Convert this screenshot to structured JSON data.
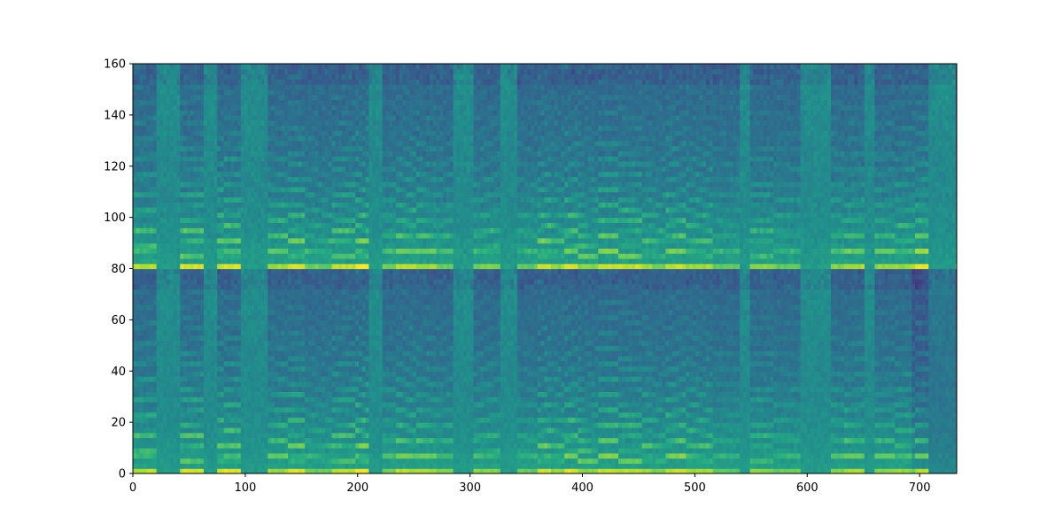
{
  "chart_data": {
    "type": "heatmap",
    "title": "",
    "xlabel": "",
    "ylabel": "",
    "xlim": [
      0,
      733
    ],
    "ylim": [
      0,
      160
    ],
    "x_ticks": [
      0,
      100,
      200,
      300,
      400,
      500,
      600,
      700
    ],
    "y_ticks": [
      0,
      20,
      40,
      60,
      80,
      100,
      120,
      140,
      160
    ],
    "colormap": "viridis",
    "grid": false,
    "panels": [
      {
        "name": "",
        "y_range": [
          0,
          80
        ]
      },
      {
        "name": "",
        "y_range": [
          80,
          160
        ]
      }
    ],
    "colors": {
      "low": "#440154",
      "mid_dark": "#3b528b",
      "mid": "#21918c",
      "mid_light": "#5ec962",
      "high": "#fde725"
    }
  }
}
